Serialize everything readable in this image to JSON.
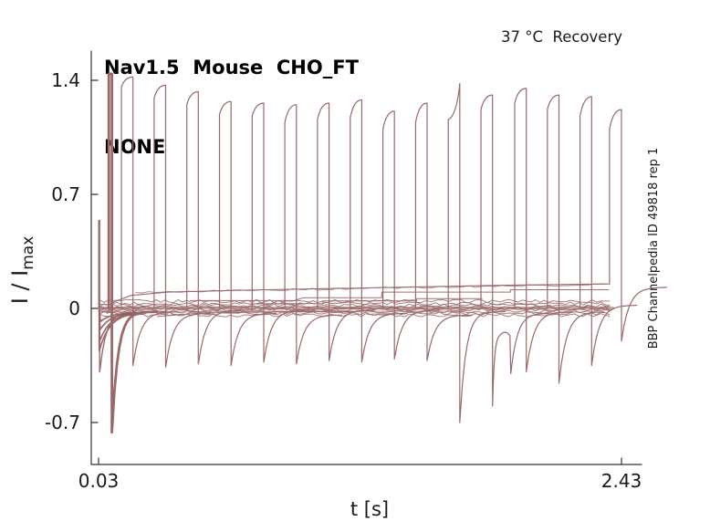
{
  "chart_data": {
    "type": "line",
    "title_line1": "Nav1.5  Mouse  CHO_FT",
    "title_line2": "NONE",
    "annotation": "37 °C  Recovery",
    "side_label": "BBP Channelpedia ID 49818 rep 1",
    "xlabel": "t [s]",
    "ylabel_main": "I / I",
    "ylabel_sub": "max",
    "ylabel_full": "I / I_max",
    "x_ticks": [
      {
        "t": 0.03,
        "label": "0.03"
      },
      {
        "t": 2.43,
        "label": "2.43"
      }
    ],
    "y_ticks": [
      {
        "v": 1.4,
        "label": "1.4"
      },
      {
        "v": 0.7,
        "label": "0.7"
      },
      {
        "v": 0,
        "label": "0"
      },
      {
        "v": -0.7,
        "label": "-0.7"
      }
    ],
    "xlim": [
      0.0,
      2.52
    ],
    "ylim": [
      -0.96,
      1.58
    ],
    "grid": false,
    "legend": "none",
    "trace_color": "#9a6868",
    "trace_color_dense": "#8e5c5c",
    "axis_color": "#333333",
    "text_color": "#1a1a1a",
    "description": "Normalized sodium-channel current traces (recovery-from-inactivation protocol), 17 overlaid sweeps of paired pulses vs time",
    "pre_pulse": {
      "t": 0.031,
      "peak": 0.54,
      "dip": -0.39
    },
    "start_transients": {
      "t": 0.033,
      "dips": [
        -0.26,
        -0.2,
        -0.13,
        -0.08
      ]
    },
    "pulses": [
      {
        "t0": 0.077,
        "w": 0.014,
        "top1": 1.44,
        "top2": 1.44,
        "dip": -0.76,
        "end": -0.02,
        "solid": true
      },
      {
        "t0": 0.135,
        "w": 0.053,
        "top1": 1.36,
        "top2": 1.42,
        "dip": -0.35,
        "end": -0.02
      },
      {
        "t0": 0.285,
        "w": 0.053,
        "top1": 1.29,
        "top2": 1.37,
        "dip": -0.36,
        "end": -0.03
      },
      {
        "t0": 0.435,
        "w": 0.053,
        "top1": 1.25,
        "top2": 1.33,
        "dip": -0.34,
        "end": -0.01
      },
      {
        "t0": 0.585,
        "w": 0.053,
        "top1": 1.19,
        "top2": 1.27,
        "dip": -0.35,
        "end": -0.03
      },
      {
        "t0": 0.735,
        "w": 0.053,
        "top1": 1.18,
        "top2": 1.26,
        "dip": -0.33,
        "end": -0.01
      },
      {
        "t0": 0.885,
        "w": 0.053,
        "top1": 1.14,
        "top2": 1.25,
        "dip": -0.34,
        "end": -0.04
      },
      {
        "t0": 1.035,
        "w": 0.053,
        "top1": 1.16,
        "top2": 1.26,
        "dip": -0.32,
        "end": -0.01
      },
      {
        "t0": 1.185,
        "w": 0.053,
        "top1": 1.17,
        "top2": 1.28,
        "dip": -0.33,
        "end": -0.03
      },
      {
        "t0": 1.335,
        "w": 0.053,
        "top1": 1.1,
        "top2": 1.21,
        "dip": -0.31,
        "end": -0.01
      },
      {
        "t0": 1.485,
        "w": 0.053,
        "top1": 1.14,
        "top2": 1.26,
        "dip": -0.32,
        "end": -0.04
      },
      {
        "t0": 1.635,
        "w": 0.053,
        "top1": 1.16,
        "top2": 1.38,
        "dip": -0.7,
        "end": -0.02,
        "pointed": true
      },
      {
        "t0": 1.785,
        "w": 0.053,
        "top1": 1.22,
        "top2": 1.31,
        "dip": -0.6,
        "end": -0.03,
        "bump": {
          "plateau": -0.155,
          "t_drop": 1.918,
          "drop_to": -0.4
        }
      },
      {
        "t0": 1.94,
        "w": 0.053,
        "top1": 1.26,
        "top2": 1.35,
        "dip": -0.39,
        "end": -0.02
      },
      {
        "t0": 2.09,
        "w": 0.053,
        "top1": 1.22,
        "top2": 1.31,
        "dip": -0.46,
        "end": -0.02
      },
      {
        "t0": 2.24,
        "w": 0.053,
        "top1": 1.18,
        "top2": 1.3,
        "dip": -0.35,
        "end": 0.02
      },
      {
        "t0": 2.375,
        "w": 0.055,
        "top1": 1.1,
        "top2": 1.22,
        "dip": -0.2,
        "end": 0.13,
        "rise_from": 0.148
      }
    ],
    "baseline_band": {
      "t0": 0.035,
      "t1": 2.39,
      "noise": 0.01,
      "levels": [
        0.045,
        0.03,
        0.018,
        0.008,
        0.0,
        -0.008,
        -0.018,
        -0.03,
        -0.042
      ]
    },
    "rising_line": {
      "noise": 0.006,
      "pts": [
        [
          0.07,
          -0.03
        ],
        [
          0.1,
          0.04
        ],
        [
          0.18,
          0.08
        ],
        [
          0.35,
          0.1
        ],
        [
          0.7,
          0.112
        ],
        [
          1.1,
          0.122
        ],
        [
          1.5,
          0.132
        ],
        [
          1.9,
          0.142
        ],
        [
          2.37,
          0.15
        ]
      ]
    },
    "step_lines": [
      {
        "pts": [
          [
            0.45,
            0.048
          ],
          [
            0.93,
            0.048
          ],
          [
            0.97,
            0.066
          ],
          [
            1.33,
            0.066
          ],
          [
            1.33,
            0.1
          ],
          [
            1.92,
            0.1
          ],
          [
            1.92,
            0.115
          ],
          [
            2.37,
            0.115
          ]
        ]
      },
      {
        "pts": [
          [
            0.72,
            0.028
          ],
          [
            1.06,
            0.03
          ],
          [
            1.06,
            0.046
          ],
          [
            1.49,
            0.046
          ],
          [
            1.49,
            0.06
          ],
          [
            1.79,
            0.06
          ]
        ]
      },
      {
        "pts": [
          [
            0.3,
            -0.05
          ],
          [
            0.5,
            -0.028
          ],
          [
            0.9,
            -0.02
          ],
          [
            1.2,
            -0.018
          ]
        ]
      }
    ]
  }
}
